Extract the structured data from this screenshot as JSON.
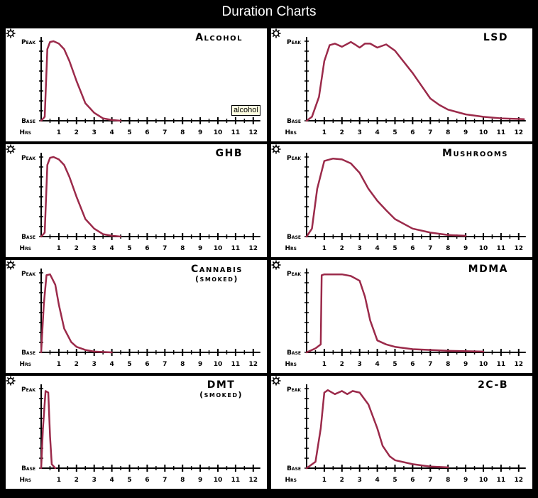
{
  "page_title": "Duration Charts",
  "tooltip": "alcohol",
  "chart_data": {
    "type": "line",
    "y_labels": {
      "top": "Peak",
      "bottom": "Base"
    },
    "x_label": "Hrs",
    "x_ticks": [
      "1",
      "2",
      "3",
      "4",
      "5",
      "6",
      "7",
      "8",
      "9",
      "10",
      "11",
      "12"
    ],
    "xlim": [
      0,
      12.3
    ],
    "ylim": [
      0,
      1
    ],
    "line_color": "#9b2a4a",
    "charts": [
      {
        "name": "Alcohol",
        "subtitle": "",
        "points": [
          [
            0,
            0
          ],
          [
            0.2,
            0.05
          ],
          [
            0.35,
            0.9
          ],
          [
            0.5,
            0.99
          ],
          [
            0.7,
            1
          ],
          [
            1,
            0.97
          ],
          [
            1.3,
            0.9
          ],
          [
            1.6,
            0.75
          ],
          [
            2,
            0.5
          ],
          [
            2.5,
            0.22
          ],
          [
            3,
            0.1
          ],
          [
            3.5,
            0.03
          ],
          [
            4,
            0.01
          ],
          [
            4.5,
            0
          ]
        ]
      },
      {
        "name": "LSD",
        "subtitle": "",
        "points": [
          [
            0,
            0
          ],
          [
            0.3,
            0.05
          ],
          [
            0.7,
            0.3
          ],
          [
            1,
            0.75
          ],
          [
            1.3,
            0.95
          ],
          [
            1.6,
            0.97
          ],
          [
            2,
            0.93
          ],
          [
            2.5,
            0.99
          ],
          [
            2.8,
            0.95
          ],
          [
            3,
            0.92
          ],
          [
            3.3,
            0.97
          ],
          [
            3.6,
            0.97
          ],
          [
            4,
            0.92
          ],
          [
            4.5,
            0.96
          ],
          [
            5,
            0.88
          ],
          [
            6,
            0.6
          ],
          [
            7,
            0.28
          ],
          [
            7.5,
            0.2
          ],
          [
            8,
            0.14
          ],
          [
            9,
            0.08
          ],
          [
            10,
            0.05
          ],
          [
            11,
            0.03
          ],
          [
            12.3,
            0.02
          ]
        ]
      },
      {
        "name": "GHB",
        "subtitle": "",
        "points": [
          [
            0,
            0
          ],
          [
            0.2,
            0.05
          ],
          [
            0.35,
            0.9
          ],
          [
            0.5,
            0.99
          ],
          [
            0.7,
            1
          ],
          [
            1,
            0.97
          ],
          [
            1.3,
            0.9
          ],
          [
            1.6,
            0.75
          ],
          [
            2,
            0.5
          ],
          [
            2.5,
            0.22
          ],
          [
            3,
            0.1
          ],
          [
            3.5,
            0.03
          ],
          [
            4,
            0.01
          ],
          [
            4.5,
            0
          ]
        ]
      },
      {
        "name": "Mushrooms",
        "subtitle": "",
        "points": [
          [
            0,
            0
          ],
          [
            0.3,
            0.1
          ],
          [
            0.6,
            0.6
          ],
          [
            1,
            0.95
          ],
          [
            1.5,
            0.98
          ],
          [
            2,
            0.97
          ],
          [
            2.5,
            0.92
          ],
          [
            3,
            0.8
          ],
          [
            3.5,
            0.6
          ],
          [
            4,
            0.45
          ],
          [
            4.5,
            0.33
          ],
          [
            5,
            0.22
          ],
          [
            6,
            0.1
          ],
          [
            7,
            0.05
          ],
          [
            8,
            0.02
          ],
          [
            9,
            0.01
          ]
        ]
      },
      {
        "name": "Cannabis",
        "subtitle": "(smoked)",
        "points": [
          [
            0,
            0
          ],
          [
            0.15,
            0.6
          ],
          [
            0.3,
            0.97
          ],
          [
            0.5,
            0.98
          ],
          [
            0.8,
            0.85
          ],
          [
            1,
            0.6
          ],
          [
            1.3,
            0.3
          ],
          [
            1.7,
            0.13
          ],
          [
            2,
            0.07
          ],
          [
            2.5,
            0.03
          ],
          [
            3,
            0.01
          ],
          [
            4,
            0
          ]
        ]
      },
      {
        "name": "MDMA",
        "subtitle": "",
        "points": [
          [
            0,
            0
          ],
          [
            0.5,
            0.05
          ],
          [
            0.8,
            0.1
          ],
          [
            0.85,
            0.97
          ],
          [
            1,
            0.98
          ],
          [
            2,
            0.98
          ],
          [
            2.5,
            0.96
          ],
          [
            3,
            0.9
          ],
          [
            3.3,
            0.7
          ],
          [
            3.6,
            0.4
          ],
          [
            4,
            0.15
          ],
          [
            4.5,
            0.1
          ],
          [
            5,
            0.07
          ],
          [
            6,
            0.04
          ],
          [
            8,
            0.02
          ],
          [
            10,
            0.01
          ]
        ]
      },
      {
        "name": "DMT",
        "subtitle": "(smoked)",
        "points": [
          [
            0,
            0
          ],
          [
            0.1,
            0.5
          ],
          [
            0.25,
            0.97
          ],
          [
            0.4,
            0.95
          ],
          [
            0.5,
            0.4
          ],
          [
            0.6,
            0.05
          ],
          [
            0.8,
            0
          ]
        ]
      },
      {
        "name": "2C-B",
        "subtitle": "",
        "points": [
          [
            0,
            0
          ],
          [
            0.5,
            0.08
          ],
          [
            0.8,
            0.5
          ],
          [
            1,
            0.95
          ],
          [
            1.2,
            0.98
          ],
          [
            1.6,
            0.93
          ],
          [
            2,
            0.97
          ],
          [
            2.3,
            0.93
          ],
          [
            2.6,
            0.97
          ],
          [
            3,
            0.95
          ],
          [
            3.5,
            0.8
          ],
          [
            4,
            0.5
          ],
          [
            4.3,
            0.28
          ],
          [
            4.7,
            0.15
          ],
          [
            5,
            0.1
          ],
          [
            6,
            0.05
          ],
          [
            7,
            0.02
          ],
          [
            8,
            0.01
          ]
        ]
      }
    ]
  }
}
